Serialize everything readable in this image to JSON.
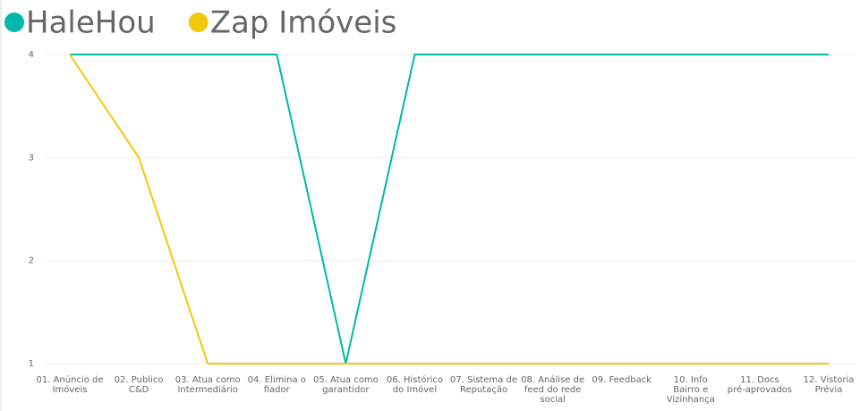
{
  "chart_data": {
    "type": "line",
    "categories": [
      "01. Anúncio de Imóveis",
      "02. Publico C&D",
      "03. Atua como Intermediário",
      "04. Elimina o fiador",
      "05. Atua como garantidor",
      "06. Histórico do Imóvel",
      "07. Sistema de Reputação",
      "08. Análise de feed do rede social",
      "09. Feedback",
      "10. Info Bairro e Vizinhança",
      "11. Docs pré-aprovados",
      "12. Vistoria Prévia"
    ],
    "series": [
      {
        "name": "HaleHou",
        "color": "#01B8AA",
        "values": [
          4,
          4,
          4,
          4,
          1,
          4,
          4,
          4,
          4,
          4,
          4,
          4
        ]
      },
      {
        "name": "Zap Imóveis",
        "color": "#F2C80F",
        "values": [
          4,
          3,
          1,
          1,
          1,
          1,
          1,
          1,
          1,
          1,
          1,
          1
        ]
      }
    ],
    "ylim": [
      1,
      4
    ],
    "yticks": [
      1,
      2,
      3,
      4
    ],
    "grid": true,
    "legend": "top-left"
  }
}
